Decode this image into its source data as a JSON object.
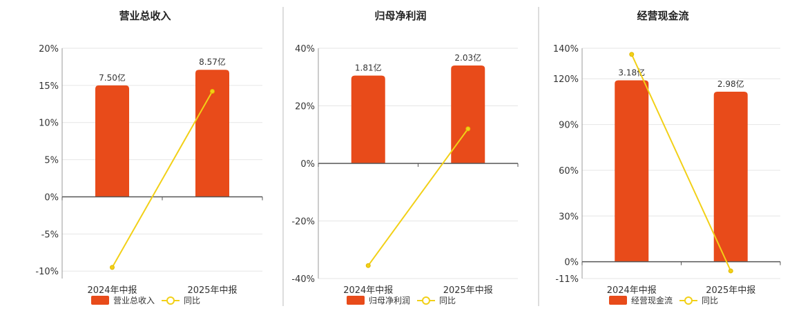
{
  "colors": {
    "bar": "#E84B1A",
    "line": "#F2D017",
    "grid": "#e6e6e6",
    "axis": "#555555",
    "divider": "#bbbbbb"
  },
  "chart_data": [
    {
      "type": "bar",
      "title": "营业总收入",
      "categories": [
        "2024年中报",
        "2025年中报"
      ],
      "bar_labels": [
        "7.50亿",
        "8.57亿"
      ],
      "bar_values_pct_axis": [
        15.0,
        17.1
      ],
      "line_values": [
        -9.5,
        14.2
      ],
      "ylim": [
        -11,
        20
      ],
      "yticks": [
        20,
        15,
        10,
        5,
        0,
        -5,
        -10
      ],
      "ytick_labels": [
        "20%",
        "15%",
        "10%",
        "5%",
        "0%",
        "-5%",
        "-10%"
      ],
      "legend": {
        "bar": "营业总收入",
        "line": "同比"
      }
    },
    {
      "type": "bar",
      "title": "归母净利润",
      "categories": [
        "2024年中报",
        "2025年中报"
      ],
      "bar_labels": [
        "1.81亿",
        "2.03亿"
      ],
      "bar_values_pct_axis": [
        30.5,
        34.0
      ],
      "line_values": [
        -35.5,
        12.0
      ],
      "ylim": [
        -40,
        40
      ],
      "yticks": [
        40,
        20,
        0,
        -20,
        -40
      ],
      "ytick_labels": [
        "40%",
        "20%",
        "0%",
        "-20%",
        "-40%"
      ],
      "legend": {
        "bar": "归母净利润",
        "line": "同比"
      }
    },
    {
      "type": "bar",
      "title": "经营现金流",
      "categories": [
        "2024年中报",
        "2025年中报"
      ],
      "bar_labels": [
        "3.18亿",
        "2.98亿"
      ],
      "bar_values_pct_axis": [
        119.0,
        111.5
      ],
      "line_values": [
        136.0,
        -6.0
      ],
      "ylim": [
        -11,
        140
      ],
      "yticks": [
        140,
        120,
        90,
        60,
        30,
        0,
        -11
      ],
      "ytick_labels": [
        "140%",
        "120%",
        "90%",
        "60%",
        "30%",
        "0%",
        "-11%"
      ],
      "legend": {
        "bar": "经营现金流",
        "line": "同比"
      }
    }
  ]
}
